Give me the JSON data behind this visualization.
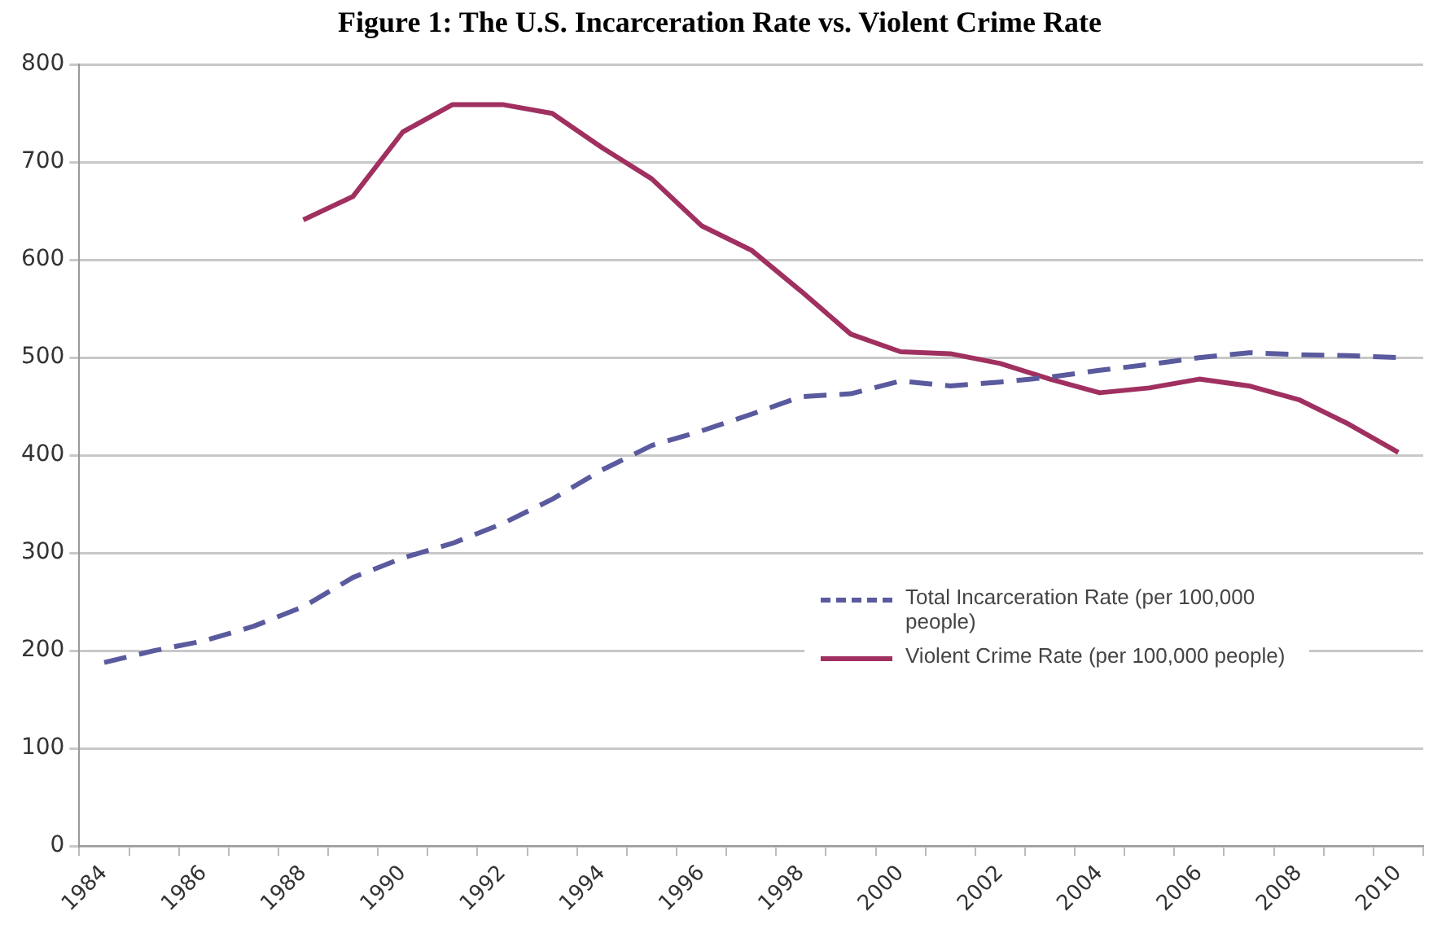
{
  "chart_data": {
    "type": "line",
    "title": "Figure 1: The U.S. Incarceration Rate vs. Violent Crime Rate",
    "categories": [
      "1984",
      null,
      "1986",
      null,
      "1988",
      null,
      "1990",
      null,
      "1992",
      null,
      "1994",
      null,
      "1996",
      null,
      "1998",
      null,
      "2000",
      null,
      "2002",
      null,
      "2004",
      null,
      "2006",
      null,
      "2008",
      null,
      "2010"
    ],
    "series": [
      {
        "name": "Total Incarceration Rate (per 100,000 people)",
        "color": "#5a5a9e",
        "line_style": "dashed",
        "values": [
          188,
          200,
          210,
          225,
          245,
          275,
          295,
          310,
          330,
          355,
          385,
          410,
          425,
          442,
          460,
          463,
          476,
          471,
          475,
          480,
          487,
          493,
          500,
          505,
          503,
          502,
          500
        ]
      },
      {
        "name": "Violent Crime Rate (per 100,000 people)",
        "color": "#a0305f",
        "line_style": "solid",
        "values": [
          null,
          null,
          null,
          null,
          641,
          665,
          731,
          759,
          759,
          750,
          715,
          683,
          635,
          610,
          568,
          524,
          506,
          504,
          494,
          478,
          464,
          469,
          478,
          471,
          457,
          432,
          403
        ]
      }
    ],
    "ylim": [
      0,
      800
    ],
    "yticks": [
      0,
      100,
      200,
      300,
      400,
      500,
      600,
      700,
      800
    ],
    "grid": "y",
    "legend": "bottom right",
    "marker": "none"
  }
}
